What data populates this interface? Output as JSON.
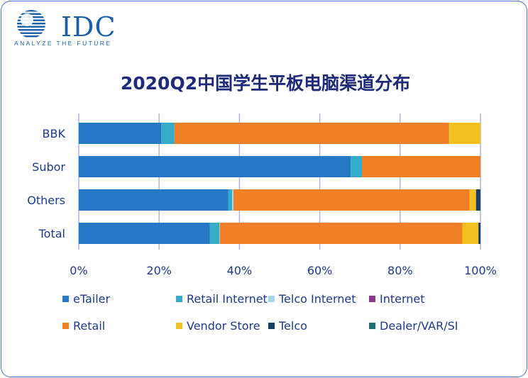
{
  "logo": {
    "name": "IDC",
    "tagline": "ANALYZE THE FUTURE"
  },
  "title": "2020Q2中国学生平板电脑渠道分布",
  "colors": {
    "eTailer": "#2778c4",
    "Retail Internet": "#35acc8",
    "Telco Internet": "#a7d8ea",
    "Internet": "#8b3a8e",
    "Retail": "#f07f26",
    "Vendor Store": "#f3c021",
    "Telco": "#1a3e68",
    "Dealer/VAR/SI": "#1f6e74"
  },
  "chart_data": {
    "type": "bar",
    "orientation": "horizontal",
    "stacked": "percent",
    "title": "2020Q2中国学生平板电脑渠道分布",
    "categories": [
      "BBK",
      "Subor",
      "Others",
      "Total"
    ],
    "xlim": [
      0,
      100
    ],
    "x_ticks": [
      "0%",
      "20%",
      "40%",
      "60%",
      "80%",
      "100%"
    ],
    "grid": "vertical",
    "legend_position": "bottom",
    "series": [
      {
        "name": "eTailer",
        "values": [
          20.5,
          67.7,
          37.2,
          32.6
        ]
      },
      {
        "name": "Retail Internet",
        "values": [
          3.3,
          2.8,
          1.0,
          2.4
        ]
      },
      {
        "name": "Telco Internet",
        "values": [
          0,
          0,
          0.3,
          0.1
        ]
      },
      {
        "name": "Internet",
        "values": [
          0,
          0,
          0,
          0
        ]
      },
      {
        "name": "Retail",
        "values": [
          68.4,
          29.5,
          58.8,
          60.4
        ]
      },
      {
        "name": "Vendor Store",
        "values": [
          7.8,
          0,
          1.6,
          4.0
        ]
      },
      {
        "name": "Telco",
        "values": [
          0,
          0,
          1.1,
          0.5
        ]
      },
      {
        "name": "Dealer/VAR/SI",
        "values": [
          0,
          0,
          0,
          0
        ]
      }
    ]
  }
}
